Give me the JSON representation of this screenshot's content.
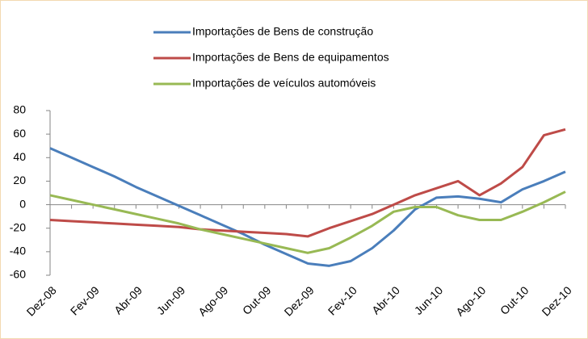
{
  "chart_data": {
    "type": "line",
    "categories": [
      "Dez-08",
      null,
      "Fev-09",
      null,
      "Abr-09",
      null,
      "Jun-09",
      null,
      "Ago-09",
      null,
      "Out-09",
      null,
      "Dez-09",
      null,
      "Fev-10",
      null,
      "Abr-10",
      null,
      "Jun-10",
      null,
      "Ago-10",
      null,
      "Out-10",
      null,
      "Dez-10"
    ],
    "series": [
      {
        "name": "Importações de Bens de construção",
        "color": "#4a7ebb",
        "values": [
          48,
          40,
          32,
          24,
          15,
          7,
          -1,
          -9,
          -17,
          -25,
          -34,
          -42,
          -50,
          -52,
          -48,
          -37,
          -22,
          -4,
          6,
          7,
          5,
          2,
          13,
          20,
          28
        ]
      },
      {
        "name": "Importações de Bens de equipamentos",
        "color": "#be4b48",
        "values": [
          -13,
          -14,
          -15,
          -16,
          -17,
          -18,
          -19,
          -21,
          -22,
          -23,
          -24,
          -25,
          -27,
          -20,
          -14,
          -8,
          0,
          8,
          14,
          20,
          8,
          18,
          32,
          59,
          64
        ]
      },
      {
        "name": "Importações de veículos automóveis",
        "color": "#98b954",
        "values": [
          8,
          4,
          0,
          -4,
          -8,
          -12,
          -16,
          -21,
          -25,
          -29,
          -33,
          -37,
          -41,
          -37,
          -28,
          -18,
          -6,
          -2,
          -2,
          -9,
          -13,
          -13,
          -6,
          2,
          11
        ]
      }
    ],
    "ylim": [
      -60,
      80
    ],
    "yticks": [
      -60,
      -40,
      -20,
      0,
      20,
      40,
      60,
      80
    ],
    "grid": false
  }
}
